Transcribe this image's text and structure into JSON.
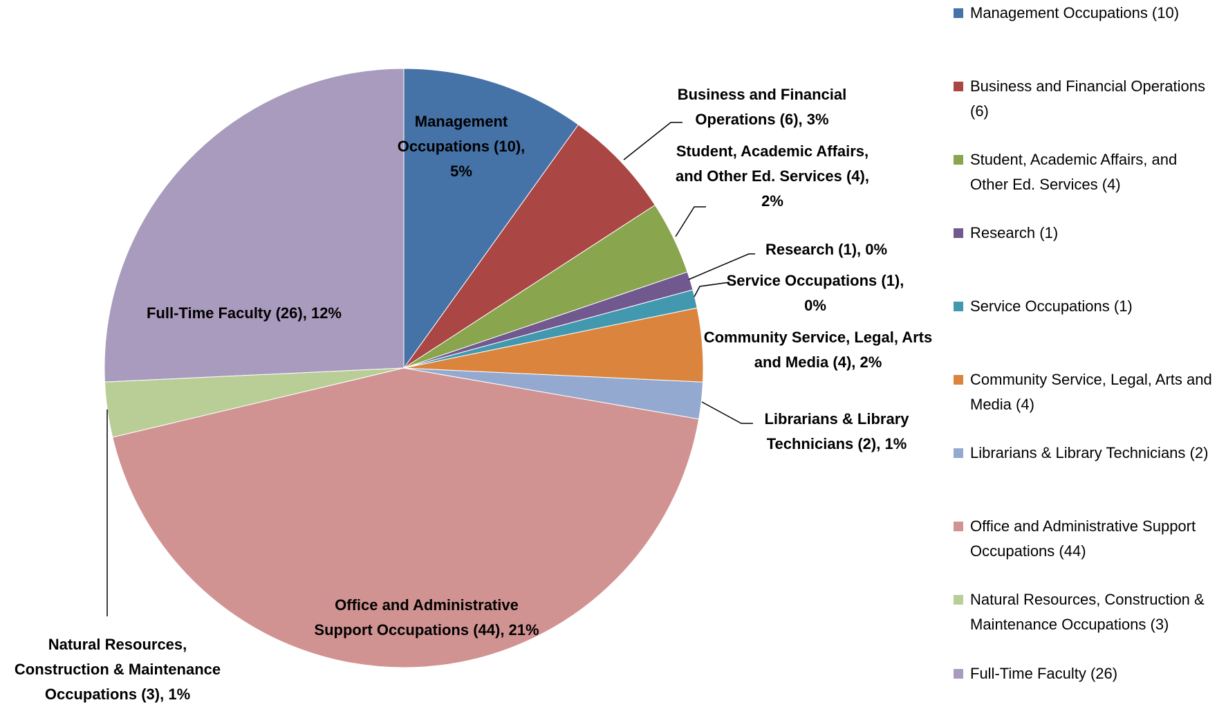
{
  "chart_data": {
    "type": "pie",
    "categories": [
      "Management Occupations (10)",
      "Business and Financial Operations (6)",
      "Student, Academic Affairs, and Other Ed. Services (4)",
      "Research (1)",
      "Service Occupations (1)",
      "Community Service, Legal, Arts and Media (4)",
      "Librarians & Library Technicians (2)",
      "Office and Administrative Support Occupations (44)",
      "Natural Resources, Construction & Maintenance Occupations (3)",
      "Full-Time Faculty (26)"
    ],
    "values": [
      10,
      6,
      4,
      1,
      1,
      4,
      2,
      44,
      3,
      26
    ],
    "value_labels": [
      "Management Occupations (10), 5%",
      "Business and Financial Operations (6), 3%",
      "Student, Academic Affairs, and Other Ed. Services (4), 2%",
      "Research (1), 0%",
      "Service Occupations (1), 0%",
      "Community Service, Legal, Arts and Media (4), 2%",
      "Librarians & Library Technicians (2), 1%",
      "Office and Administrative Support Occupations (44), 21%",
      "Natural Resources, Construction & Maintenance Occupations (3), 1%",
      "Full-Time Faculty (26), 12%"
    ],
    "colors": [
      "#4572a7",
      "#aa4643",
      "#89a54e",
      "#71588f",
      "#4198af",
      "#db843d",
      "#93a9cf",
      "#d19392",
      "#b9cd96",
      "#a99bbd"
    ],
    "legend": "right"
  }
}
